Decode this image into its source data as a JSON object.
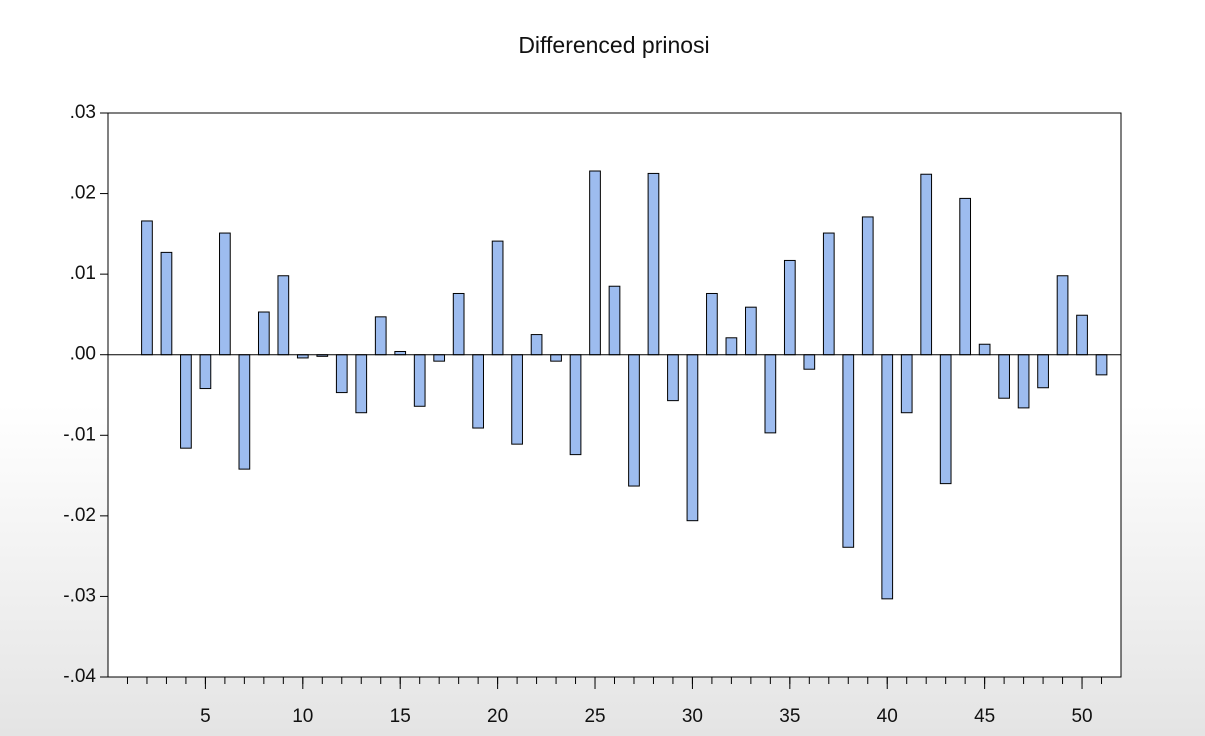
{
  "chart_data": {
    "type": "bar",
    "title": "Differenced prinosi",
    "x": [
      2,
      3,
      4,
      5,
      6,
      7,
      8,
      9,
      10,
      11,
      12,
      13,
      14,
      15,
      16,
      17,
      18,
      19,
      20,
      21,
      22,
      23,
      24,
      25,
      26,
      27,
      28,
      29,
      30,
      31,
      32,
      33,
      34,
      35,
      36,
      37,
      38,
      39,
      40,
      41,
      42,
      43,
      44,
      45,
      46,
      47,
      48,
      49,
      50,
      51
    ],
    "values": [
      0.0166,
      0.0127,
      -0.0116,
      -0.0042,
      0.0151,
      -0.0142,
      0.0053,
      0.0098,
      -0.0004,
      -0.0002,
      -0.0047,
      -0.0072,
      0.0047,
      0.0004,
      -0.0064,
      -0.0008,
      0.0076,
      -0.0091,
      0.0141,
      -0.0111,
      0.0025,
      -0.0008,
      -0.0124,
      0.0228,
      0.0085,
      -0.0163,
      0.0225,
      -0.0057,
      -0.0206,
      0.0076,
      0.0021,
      0.0059,
      -0.0097,
      0.0117,
      -0.0018,
      0.0151,
      -0.0239,
      0.0171,
      -0.0303,
      -0.0072,
      0.0224,
      -0.016,
      0.0194,
      0.0013,
      -0.0054,
      -0.0066,
      -0.0041,
      0.0098,
      0.0049,
      -0.0025
    ],
    "color": "#9dbcef",
    "xlim": [
      0,
      52
    ],
    "xticks": [
      5,
      10,
      15,
      20,
      25,
      30,
      35,
      40,
      45,
      50
    ],
    "ylim": [
      -0.04,
      0.03
    ],
    "yticks": [
      {
        "value": -0.04,
        "label": "-.04"
      },
      {
        "value": -0.03,
        "label": "-.03"
      },
      {
        "value": -0.02,
        "label": "-.02"
      },
      {
        "value": -0.01,
        "label": "-.01"
      },
      {
        "value": 0,
        "label": ".00"
      },
      {
        "value": 0.01,
        "label": ".01"
      },
      {
        "value": 0.02,
        "label": ".02"
      },
      {
        "value": 0.03,
        "label": ".03"
      }
    ]
  }
}
